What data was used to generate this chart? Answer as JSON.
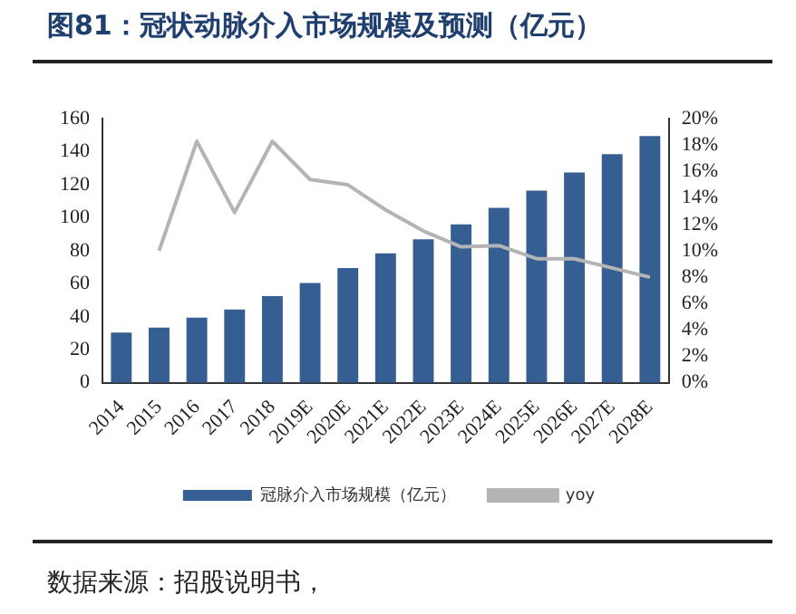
{
  "chart_data": {
    "type": "bar",
    "title": "图81：冠状动脉介入市场规模及预测（亿元）",
    "categories": [
      "2014",
      "2015",
      "2016",
      "2017",
      "2018",
      "2019E",
      "2020E",
      "2021E",
      "2022E",
      "2023E",
      "2024E",
      "2025E",
      "2026E",
      "2027E",
      "2028E"
    ],
    "series": [
      {
        "name": "冠脉介入市场规模（亿元）",
        "color": "#355e92",
        "values": [
          30.5,
          33.5,
          39.5,
          44.5,
          52.5,
          60.5,
          69.5,
          78.5,
          87,
          96,
          106,
          116.5,
          127.5,
          138.5,
          149.5
        ]
      },
      {
        "name": "yoy",
        "type": "line",
        "axis": "y2",
        "color": "#b4b4b4",
        "values": [
          null,
          10,
          18.3,
          12.9,
          18.3,
          15.4,
          15,
          13.1,
          11.5,
          10.3,
          10.4,
          9.4,
          9.4,
          8.7,
          8
        ]
      }
    ],
    "ylim": [
      0,
      160
    ],
    "yticks": [
      0,
      20,
      40,
      60,
      80,
      100,
      120,
      140,
      160
    ],
    "y2lim": [
      0,
      20
    ],
    "y2ticks": [
      {
        "value": 0,
        "label": "0%"
      },
      {
        "value": 2,
        "label": "2%"
      },
      {
        "value": 4,
        "label": "4%"
      },
      {
        "value": 6,
        "label": "6%"
      },
      {
        "value": 8,
        "label": "8%"
      },
      {
        "value": 10,
        "label": "10%"
      },
      {
        "value": 12,
        "label": "12%"
      },
      {
        "value": 14,
        "label": "14%"
      },
      {
        "value": 16,
        "label": "16%"
      },
      {
        "value": 18,
        "label": "18%"
      },
      {
        "value": 20,
        "label": "20%"
      }
    ],
    "grid": false,
    "legend": "bottom",
    "marker": "none",
    "annotations": [
      "数据来源：招股说明书，"
    ]
  }
}
